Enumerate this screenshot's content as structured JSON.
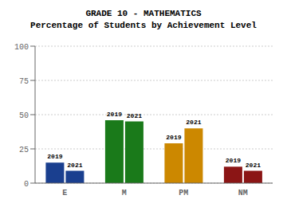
{
  "chart_data": {
    "type": "bar",
    "title": "GRADE 10 - MATHEMATICS",
    "subtitle": "Percentage of Students by Achievement Level",
    "categories": [
      "E",
      "M",
      "PM",
      "NM"
    ],
    "series": [
      {
        "name": "2019",
        "colors": [
          "#1a3f8f",
          "#1a7a1a",
          "#cc8800",
          "#8b1515"
        ],
        "values": [
          15,
          46,
          29,
          12
        ]
      },
      {
        "name": "2021",
        "colors": [
          "#1a3f8f",
          "#1a7a1a",
          "#cc8800",
          "#8b1515"
        ],
        "values": [
          9,
          45,
          40,
          9
        ]
      }
    ],
    "ylim": [
      0,
      100
    ],
    "yticks": [
      0,
      25,
      50,
      75,
      100
    ],
    "grid": true
  }
}
